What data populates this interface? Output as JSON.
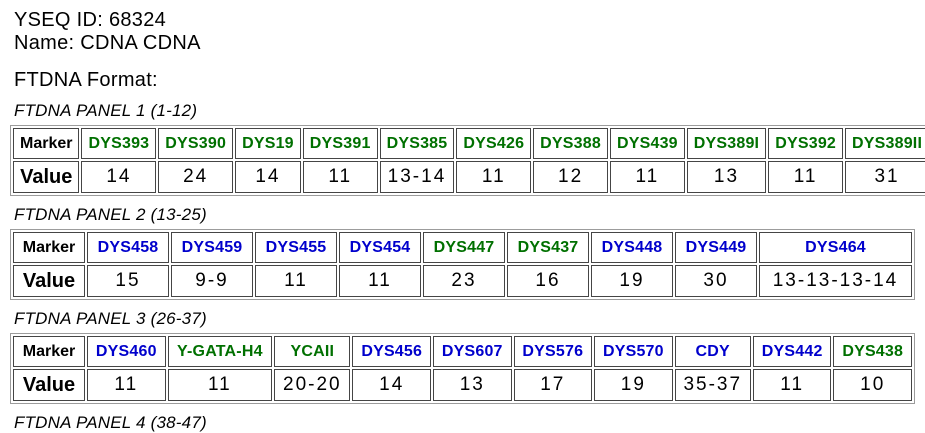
{
  "page": {
    "yseq_id": "YSEQ ID: 68324",
    "name": "Name: CDNA CDNA",
    "format_heading": "FTDNA Format:"
  },
  "table_labels": {
    "marker": "Marker",
    "value": "Value"
  },
  "colors": {
    "green": "#007000",
    "blue": "#0000CC"
  },
  "panels": [
    {
      "title": "FTDNA PANEL 1 (1-12)",
      "markers": [
        {
          "name": "DYS393",
          "value": "14",
          "color": "green"
        },
        {
          "name": "DYS390",
          "value": "24",
          "color": "green"
        },
        {
          "name": "DYS19",
          "value": "14",
          "color": "green"
        },
        {
          "name": "DYS391",
          "value": "11",
          "color": "green"
        },
        {
          "name": "DYS385",
          "value": "13-14",
          "color": "green"
        },
        {
          "name": "DYS426",
          "value": "11",
          "color": "green"
        },
        {
          "name": "DYS388",
          "value": "12",
          "color": "green"
        },
        {
          "name": "DYS439",
          "value": "11",
          "color": "green"
        },
        {
          "name": "DYS389I",
          "value": "13",
          "color": "green"
        },
        {
          "name": "DYS392",
          "value": "11",
          "color": "green"
        },
        {
          "name": "DYS389II",
          "value": "31",
          "color": "green"
        }
      ]
    },
    {
      "title": "FTDNA PANEL 2 (13-25)",
      "markers": [
        {
          "name": "DYS458",
          "value": "15",
          "color": "blue"
        },
        {
          "name": "DYS459",
          "value": "9-9",
          "color": "blue"
        },
        {
          "name": "DYS455",
          "value": "11",
          "color": "blue"
        },
        {
          "name": "DYS454",
          "value": "11",
          "color": "blue"
        },
        {
          "name": "DYS447",
          "value": "23",
          "color": "green"
        },
        {
          "name": "DYS437",
          "value": "16",
          "color": "green"
        },
        {
          "name": "DYS448",
          "value": "19",
          "color": "blue"
        },
        {
          "name": "DYS449",
          "value": "30",
          "color": "blue"
        },
        {
          "name": "DYS464",
          "value": "13-13-13-14",
          "color": "blue"
        }
      ]
    },
    {
      "title": "FTDNA PANEL 3 (26-37)",
      "markers": [
        {
          "name": "DYS460",
          "value": "11",
          "color": "blue"
        },
        {
          "name": "Y-GATA-H4",
          "value": "11",
          "color": "green"
        },
        {
          "name": "YCAII",
          "value": "20-20",
          "color": "green"
        },
        {
          "name": "DYS456",
          "value": "14",
          "color": "blue"
        },
        {
          "name": "DYS607",
          "value": "13",
          "color": "blue"
        },
        {
          "name": "DYS576",
          "value": "17",
          "color": "blue"
        },
        {
          "name": "DYS570",
          "value": "19",
          "color": "blue"
        },
        {
          "name": "CDY",
          "value": "35-37",
          "color": "blue"
        },
        {
          "name": "DYS442",
          "value": "11",
          "color": "blue"
        },
        {
          "name": "DYS438",
          "value": "10",
          "color": "green"
        }
      ]
    },
    {
      "title": "FTDNA PANEL 4 (38-47)",
      "markers": []
    }
  ]
}
